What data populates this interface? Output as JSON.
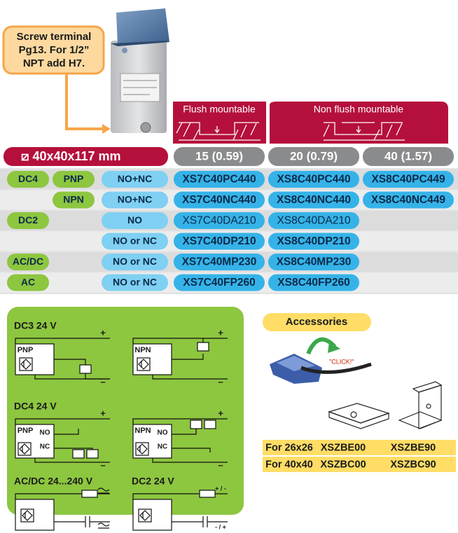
{
  "callout": [
    "Screw terminal",
    "Pg13.  For 1/2”",
    "NPT add H7."
  ],
  "mounting": {
    "flush": "Flush mountable",
    "non_flush": "Non flush mountable"
  },
  "table": {
    "size": "⧄ 40x40x117 mm",
    "distances": [
      "15 (0.59)",
      "20 (0.79)",
      "40 (1.57)"
    ],
    "rows": [
      [
        "DC4",
        "PNP",
        "NO+NC",
        "XS7C40PC440",
        "XS8C40PC440",
        "XS8C40PC449"
      ],
      [
        null,
        "NPN",
        "NO+NC",
        "XS7C40NC440",
        "XS8C40NC440",
        "XS8C40NC449"
      ],
      [
        "DC2",
        null,
        "NO",
        "XS7C40DA210",
        "XS8C40DA210",
        null
      ],
      [
        null,
        null,
        "NO or NC",
        "XS7C40DP210",
        "XS8C40DP210",
        null
      ],
      [
        "AC/DC",
        null,
        "NO or NC",
        "XS7C40MP230",
        "XS8C40MP230",
        null
      ],
      [
        "AC",
        null,
        "NO or NC",
        "XS7C40FP260",
        "XS8C40FP260",
        null
      ]
    ]
  },
  "wiring": {
    "diagrams": [
      {
        "title": "DC3  24 V",
        "labels": [
          "PNP"
        ],
        "signs": [
          "+",
          "–"
        ]
      },
      {
        "labels": [
          "NPN"
        ],
        "signs": [
          "+",
          "–"
        ]
      },
      {
        "title": "DC4  24 V",
        "labels": [
          "PNP",
          "NO",
          "NC"
        ],
        "signs": [
          "+",
          "–"
        ]
      },
      {
        "labels": [
          "NPN",
          "NO",
          "NC"
        ],
        "signs": [
          "+",
          "–"
        ]
      },
      {
        "title": "AC/DC  24...240 V"
      },
      {
        "title": "DC2  24 V",
        "signs": [
          "+ / -",
          "- / +"
        ]
      }
    ]
  },
  "accessories": {
    "title": "Accessories",
    "click": "\"CLICK!\"",
    "rows": [
      [
        "For 26x26",
        "XSZBE00",
        "XSZBE90"
      ],
      [
        "For 40x40",
        "XSZBC00",
        "XSZBC90"
      ]
    ]
  }
}
